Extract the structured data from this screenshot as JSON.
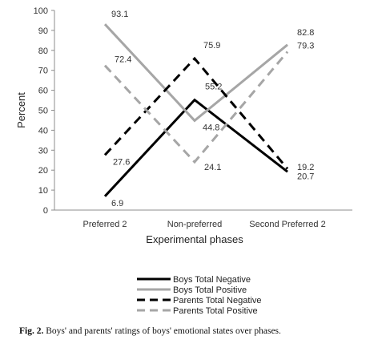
{
  "chart_data": {
    "type": "line",
    "categories": [
      "Preferred 2",
      "Non-preferred",
      "Second Preferred 2"
    ],
    "ylabel": "Percent",
    "xlabel": "Experimental phases",
    "ylim": [
      0,
      100
    ],
    "yticks": [
      "0",
      "10",
      "20",
      "30",
      "40",
      "50",
      "60",
      "70",
      "80",
      "90",
      "100"
    ],
    "grid": false,
    "legend_position": "bottom",
    "series": [
      {
        "name": "Boys Total Negative",
        "values": [
          6.9,
          55.2,
          19.2
        ],
        "labels": [
          "6.9",
          "55.2",
          "19.2"
        ],
        "color": "#000000",
        "dash": "solid"
      },
      {
        "name": "Boys Total Positive",
        "values": [
          93.1,
          44.8,
          82.8
        ],
        "labels": [
          "93.1",
          "44.8",
          "82.8"
        ],
        "color": "#a6a6a6",
        "dash": "solid"
      },
      {
        "name": "Parents Total Negative",
        "values": [
          27.6,
          75.9,
          20.7
        ],
        "labels": [
          "27.6",
          "75.9",
          "20.7"
        ],
        "color": "#000000",
        "dash": "dashed"
      },
      {
        "name": "Parents Total Positive",
        "values": [
          72.4,
          24.1,
          79.3
        ],
        "labels": [
          "72.4",
          "24.1",
          "79.3"
        ],
        "color": "#a6a6a6",
        "dash": "dashed"
      }
    ]
  },
  "caption": {
    "label": "Fig. 2.",
    "text": " Boys' and parents' ratings of boys' emotional states over phases."
  }
}
